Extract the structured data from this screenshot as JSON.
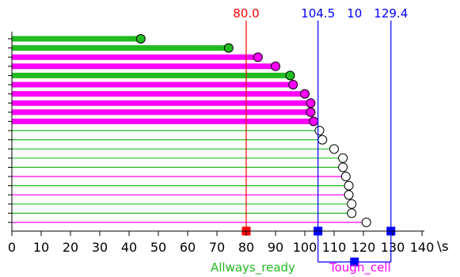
{
  "chart_data": {
    "type": "lollipop",
    "x_unit": "\\s",
    "xlim": [
      0,
      140
    ],
    "x_ticks": [
      "0",
      "10",
      "20",
      "30",
      "40",
      "50",
      "60",
      "70",
      "80",
      "90",
      "100",
      "110",
      "120",
      "130",
      "140"
    ],
    "legend": [
      {
        "name": "Allways_ready",
        "color": "#22bb22"
      },
      {
        "name": "Tough_cell",
        "color": "#ff00ff"
      }
    ],
    "markers": [
      {
        "value": 80.0,
        "label": "80.0",
        "color": "#ff0000"
      },
      {
        "value": 104.5,
        "label": "104.5",
        "color": "#0000ff"
      },
      {
        "value": 129.4,
        "label": "129.4",
        "color": "#0000ff"
      }
    ],
    "bracket": {
      "from": 104.5,
      "to": 129.4,
      "label": "10",
      "color": "#0000ff"
    },
    "rows": [
      {
        "value": 44,
        "series": "Allways_ready",
        "filled": true
      },
      {
        "value": 74,
        "series": "Allways_ready",
        "filled": true
      },
      {
        "value": 84,
        "series": "Tough_cell",
        "filled": true
      },
      {
        "value": 90,
        "series": "Tough_cell",
        "filled": true
      },
      {
        "value": 95,
        "series": "Allways_ready",
        "filled": true
      },
      {
        "value": 96,
        "series": "Tough_cell",
        "filled": true
      },
      {
        "value": 100,
        "series": "Tough_cell",
        "filled": true
      },
      {
        "value": 102,
        "series": "Tough_cell",
        "filled": true
      },
      {
        "value": 102,
        "series": "Tough_cell",
        "filled": true
      },
      {
        "value": 103,
        "series": "Tough_cell",
        "filled": true
      },
      {
        "value": 105,
        "series": "Allways_ready",
        "filled": false
      },
      {
        "value": 106,
        "series": "Allways_ready",
        "filled": false
      },
      {
        "value": 110,
        "series": "Allways_ready",
        "filled": false
      },
      {
        "value": 113,
        "series": "Allways_ready",
        "filled": false
      },
      {
        "value": 113,
        "series": "Allways_ready",
        "filled": false
      },
      {
        "value": 114,
        "series": "Tough_cell",
        "filled": false
      },
      {
        "value": 115,
        "series": "Allways_ready",
        "filled": false
      },
      {
        "value": 115,
        "series": "Tough_cell",
        "filled": false
      },
      {
        "value": 116,
        "series": "Allways_ready",
        "filled": false
      },
      {
        "value": 116,
        "series": "Allways_ready",
        "filled": false
      },
      {
        "value": 121,
        "series": "Tough_cell",
        "filled": false
      }
    ]
  }
}
